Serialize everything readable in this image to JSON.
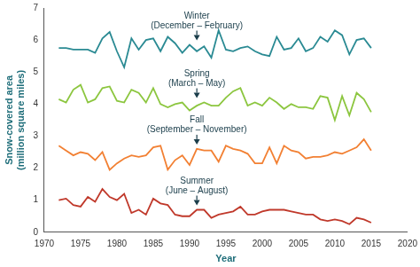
{
  "chart_data": {
    "type": "line",
    "x_label": "Year",
    "y_label": "Snow-covered area\n(million square miles)",
    "x": [
      1972,
      1973,
      1974,
      1975,
      1976,
      1977,
      1978,
      1979,
      1980,
      1981,
      1982,
      1983,
      1984,
      1985,
      1986,
      1987,
      1988,
      1989,
      1990,
      1991,
      1992,
      1993,
      1994,
      1995,
      1996,
      1997,
      1998,
      1999,
      2000,
      2001,
      2002,
      2003,
      2004,
      2005,
      2006,
      2007,
      2008,
      2009,
      2010,
      2011,
      2012,
      2013,
      2014,
      2015
    ],
    "series": [
      {
        "name": "Winter",
        "label": "(December – February)",
        "color": "#2a8a93",
        "values": [
          5.75,
          5.75,
          5.7,
          5.7,
          5.7,
          5.6,
          6.05,
          6.25,
          5.65,
          5.15,
          6.05,
          5.7,
          6.0,
          6.05,
          5.65,
          6.1,
          5.9,
          5.6,
          5.85,
          5.65,
          5.8,
          5.45,
          6.3,
          5.7,
          5.65,
          5.75,
          5.8,
          5.65,
          5.55,
          5.5,
          6.1,
          5.7,
          5.75,
          6.05,
          5.65,
          5.75,
          6.1,
          5.95,
          6.3,
          6.15,
          5.55,
          6.0,
          6.05,
          5.75
        ]
      },
      {
        "name": "Spring",
        "label": "(March – May)",
        "color": "#8cc63f",
        "values": [
          4.15,
          4.05,
          4.45,
          4.6,
          4.05,
          4.15,
          4.5,
          4.55,
          4.1,
          4.05,
          4.45,
          4.35,
          4.05,
          4.5,
          4.0,
          3.9,
          4.0,
          4.05,
          3.8,
          3.95,
          4.05,
          3.95,
          3.95,
          4.2,
          4.4,
          4.5,
          3.95,
          4.05,
          3.95,
          4.2,
          4.05,
          3.85,
          4.0,
          3.9,
          3.9,
          3.85,
          4.25,
          4.2,
          3.5,
          4.25,
          3.65,
          4.35,
          4.15,
          3.75
        ]
      },
      {
        "name": "Fall",
        "label": "(September – November)",
        "color": "#f28033",
        "values": [
          2.7,
          2.55,
          2.4,
          2.5,
          2.45,
          2.25,
          2.5,
          1.95,
          2.15,
          2.3,
          2.4,
          2.35,
          2.4,
          2.65,
          2.7,
          1.95,
          2.25,
          2.4,
          2.1,
          2.6,
          2.55,
          2.55,
          2.2,
          2.7,
          2.6,
          2.55,
          2.45,
          2.15,
          2.15,
          2.65,
          2.15,
          2.7,
          2.55,
          2.5,
          2.3,
          2.35,
          2.35,
          2.4,
          2.5,
          2.45,
          2.55,
          2.65,
          2.9,
          2.55
        ]
      },
      {
        "name": "Summer",
        "label": "(June – August)",
        "color": "#c0392b",
        "values": [
          1.0,
          1.05,
          0.85,
          0.8,
          1.1,
          0.95,
          1.35,
          1.1,
          1.0,
          1.2,
          0.6,
          0.7,
          0.55,
          1.05,
          0.9,
          0.85,
          0.55,
          0.5,
          0.5,
          0.7,
          0.7,
          0.45,
          0.55,
          0.6,
          0.65,
          0.8,
          0.55,
          0.55,
          0.65,
          0.7,
          0.7,
          0.7,
          0.65,
          0.6,
          0.55,
          0.55,
          0.4,
          0.35,
          0.4,
          0.35,
          0.25,
          0.45,
          0.4,
          0.3
        ]
      }
    ],
    "xlim": [
      1970,
      2020
    ],
    "xticks": [
      1970,
      1975,
      1980,
      1985,
      1990,
      1995,
      2000,
      2005,
      2010,
      2015,
      2020
    ],
    "ylim": [
      0,
      7
    ],
    "yticks": [
      0,
      1,
      2,
      3,
      4,
      5,
      6,
      7
    ],
    "grid": false
  }
}
